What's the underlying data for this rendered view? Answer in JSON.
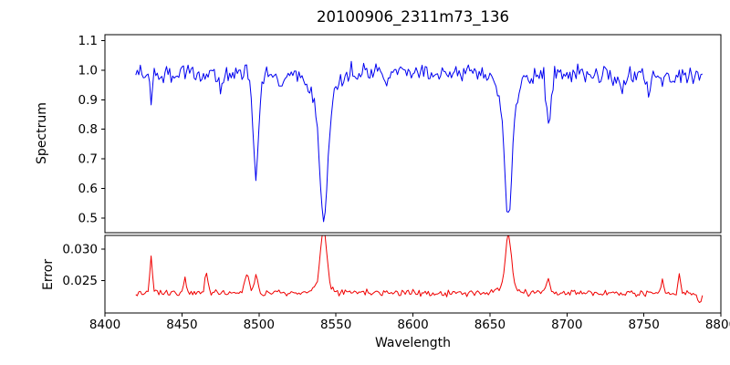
{
  "figure": {
    "background": "#ffffff",
    "spine_color": "#000000",
    "tick_color": "#000000",
    "text_color": "#000000"
  },
  "chart_data": {
    "type": "line",
    "title": "20100906_2311m73_136",
    "xlabel": "Wavelength",
    "grid": false,
    "legend": "none",
    "x_range": [
      8400,
      8800
    ],
    "x_ticks": [
      8400,
      8450,
      8500,
      8550,
      8600,
      8650,
      8700,
      8750,
      8800
    ],
    "x_tick_labels": [
      "8400",
      "8450",
      "8500",
      "8550",
      "8600",
      "8650",
      "8700",
      "8750",
      "8800"
    ],
    "x_data_range": [
      8420,
      8788
    ],
    "sample_step": 1,
    "panels": [
      {
        "name": "spectrum",
        "ylabel": "Spectrum",
        "ylim": [
          0.45,
          1.12
        ],
        "yticks": [
          0.5,
          0.6,
          0.7,
          0.8,
          0.9,
          1.0,
          1.1
        ],
        "ytick_labels": [
          "0.5",
          "0.6",
          "0.7",
          "0.8",
          "0.9",
          "1.0",
          "1.1"
        ],
        "line_color": "#0000f0",
        "series": {
          "description": "normalized stellar spectrum, continuum ~1.0 with Ca II triplet absorption lines",
          "base": 0.99,
          "curvature": 3e-07,
          "curve_center": 8600,
          "noise_sigma": 0.016,
          "noise_seed": 20100906,
          "features": [
            {
              "center": 8430,
              "amp": -0.1,
              "sigma": 0.7
            },
            {
              "center": 8475,
              "amp": -0.05,
              "sigma": 1.0
            },
            {
              "center": 8498,
              "amp": -0.345,
              "sigma": 1.7
            },
            {
              "center": 8514,
              "amp": -0.05,
              "sigma": 1.2
            },
            {
              "center": 8542,
              "amp": -0.37,
              "sigma": 2.4
            },
            {
              "center": 8542,
              "amp": -0.13,
              "sigma": 6.5
            },
            {
              "center": 8582,
              "amp": -0.04,
              "sigma": 1.2
            },
            {
              "center": 8611,
              "amp": -0.04,
              "sigma": 1.0
            },
            {
              "center": 8662,
              "amp": -0.38,
              "sigma": 2.2
            },
            {
              "center": 8662,
              "amp": -0.11,
              "sigma": 6.0
            },
            {
              "center": 8688,
              "amp": -0.18,
              "sigma": 1.4
            },
            {
              "center": 8736,
              "amp": -0.06,
              "sigma": 1.3
            },
            {
              "center": 8753,
              "amp": -0.05,
              "sigma": 1.2
            }
          ]
        }
      },
      {
        "name": "error",
        "ylabel": "Error",
        "ylim": [
          0.0198,
          0.0322
        ],
        "yticks": [
          0.025,
          0.03
        ],
        "ytick_labels": [
          "0.025",
          "0.030"
        ],
        "line_color": "#f00000",
        "series": {
          "description": "error spectrum, baseline ~0.023 with spikes at absorption-line wavelengths",
          "base": 0.023,
          "curvature": 0,
          "curve_center": 8600,
          "noise_sigma": 0.00025,
          "noise_seed": 2311,
          "features": [
            {
              "center": 8430,
              "amp": 0.0057,
              "sigma": 0.8
            },
            {
              "center": 8452,
              "amp": 0.0028,
              "sigma": 0.8
            },
            {
              "center": 8466,
              "amp": 0.0034,
              "sigma": 0.9
            },
            {
              "center": 8492,
              "amp": 0.003,
              "sigma": 1.4
            },
            {
              "center": 8498,
              "amp": 0.0028,
              "sigma": 1.2
            },
            {
              "center": 8542,
              "amp": 0.0088,
              "sigma": 2.0
            },
            {
              "center": 8542,
              "amp": 0.0012,
              "sigma": 5.0
            },
            {
              "center": 8662,
              "amp": 0.0086,
              "sigma": 1.9
            },
            {
              "center": 8662,
              "amp": 0.001,
              "sigma": 5.0
            },
            {
              "center": 8688,
              "amp": 0.0022,
              "sigma": 1.0
            },
            {
              "center": 8762,
              "amp": 0.0026,
              "sigma": 0.8
            },
            {
              "center": 8773,
              "amp": 0.003,
              "sigma": 0.8
            },
            {
              "center": 8786,
              "amp": -0.0015,
              "sigma": 1.2
            }
          ]
        }
      }
    ]
  }
}
